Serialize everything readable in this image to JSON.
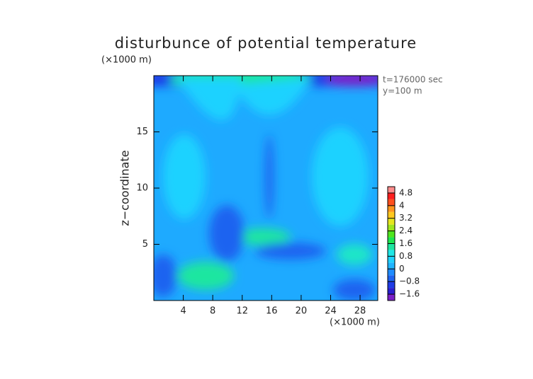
{
  "chart_data": {
    "type": "contour",
    "title": "disturbunce of potential temperature",
    "ylabel": "z−coordinate",
    "yunit": "(×1000 m)",
    "xunit": "(×1000 m)",
    "annotations": [
      "t=176000 sec",
      "y=100 m"
    ],
    "xlim": [
      0,
      30.4
    ],
    "xticks": [
      4,
      8,
      12,
      16,
      20,
      24,
      28
    ],
    "ylim": [
      0,
      20
    ],
    "yticks": [
      5,
      10,
      15
    ],
    "colorbar": {
      "clim": [
        -2.0,
        5.2
      ],
      "ticks": [
        {
          "value": 4.8,
          "label": "4.8"
        },
        4,
        {
          "value": 3.2,
          "label": "3.2"
        },
        {
          "value": 2.4,
          "label": "2.4"
        },
        {
          "value": 1.6,
          "label": "1.6"
        },
        {
          "value": 0.8,
          "label": "0.8"
        },
        0,
        {
          "value": -0.8,
          "label": "−0.8"
        },
        {
          "value": -1.6,
          "label": "−1.6"
        }
      ],
      "colors": [
        "#7a1fc8",
        "#2a1fd0",
        "#1f3ce6",
        "#1f64f0",
        "#1f8cff",
        "#1fb4ff",
        "#1ed2ff",
        "#1ee6e6",
        "#1ee6a0",
        "#1ee650",
        "#50e61e",
        "#a0e61e",
        "#e6e61e",
        "#ffc81e",
        "#ff961e",
        "#ff501e",
        "#ff1e1e",
        "#ff8c8c"
      ]
    }
  }
}
